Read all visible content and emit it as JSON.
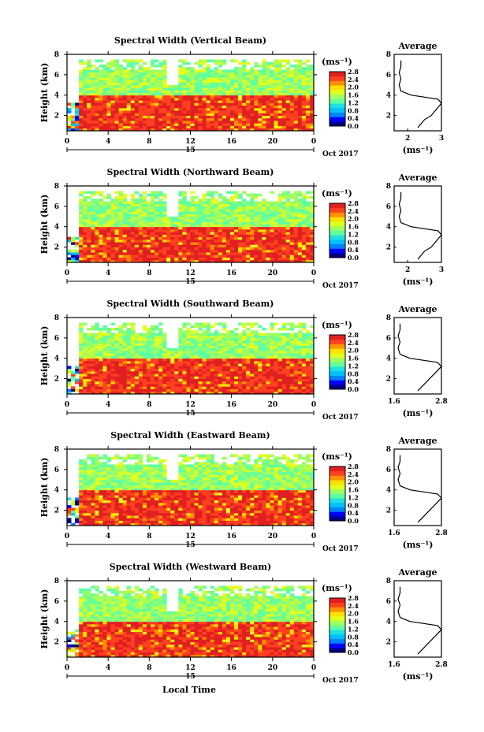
{
  "figure": {
    "xlabel_bottom": "Local Time"
  },
  "chart_data": [
    {
      "type": "heatmap",
      "beam": "vertical",
      "title": "Spectral Width (Vertical Beam)",
      "ylabel": "Height (km)",
      "x_ticks": [
        "0",
        "4",
        "8",
        "12",
        "16",
        "20",
        "0"
      ],
      "date_label": "15",
      "month_label": "Oct 2017",
      "xlim_hours": [
        0,
        24
      ],
      "ylim_km": [
        0.5,
        8
      ],
      "y_ticks": [
        "2",
        "4",
        "6",
        "8"
      ],
      "colorbar": {
        "unit": "(ms⁻¹)",
        "min": 0.0,
        "max": 2.8,
        "ticks": [
          "2.8",
          "2.4",
          "2.0",
          "1.6",
          "1.2",
          "0.8",
          "0.4",
          "0.0"
        ]
      },
      "layers": [
        {
          "from_km": 0.5,
          "to_km": 4.0,
          "value_range": [
            2.4,
            2.8
          ]
        },
        {
          "from_km": 4.0,
          "to_km": 7.5,
          "value_range": [
            1.2,
            1.8
          ]
        }
      ],
      "average": {
        "title": "Average",
        "xlabel": "(ms⁻¹)",
        "x_ticks": [
          "2",
          "3"
        ],
        "xlim": [
          1.6,
          3.0
        ],
        "y_ticks": [
          "2",
          "4",
          "6",
          "8"
        ],
        "profile": [
          [
            2.3,
            0.8
          ],
          [
            2.4,
            1.2
          ],
          [
            2.5,
            1.6
          ],
          [
            2.7,
            2.0
          ],
          [
            2.8,
            2.4
          ],
          [
            2.9,
            2.8
          ],
          [
            3.0,
            3.2
          ],
          [
            2.9,
            3.6
          ],
          [
            2.1,
            4.0
          ],
          [
            1.8,
            4.4
          ],
          [
            1.75,
            5.0
          ],
          [
            1.8,
            5.6
          ],
          [
            1.75,
            6.2
          ],
          [
            1.8,
            6.8
          ],
          [
            1.8,
            7.4
          ]
        ]
      }
    },
    {
      "type": "heatmap",
      "beam": "northward",
      "title": "Spectral Width (Northward Beam)",
      "ylabel": "Height (km)",
      "x_ticks": [
        "0",
        "4",
        "8",
        "12",
        "16",
        "20",
        "0"
      ],
      "date_label": "15",
      "month_label": "Oct 2017",
      "xlim_hours": [
        0,
        24
      ],
      "ylim_km": [
        0.5,
        8
      ],
      "y_ticks": [
        "2",
        "4",
        "6",
        "8"
      ],
      "colorbar": {
        "unit": "(ms⁻¹)",
        "min": 0.0,
        "max": 2.8,
        "ticks": [
          "2.8",
          "2.4",
          "2.0",
          "1.6",
          "1.2",
          "0.8",
          "0.4",
          "0.0"
        ]
      },
      "layers": [
        {
          "from_km": 0.5,
          "to_km": 4.0,
          "value_range": [
            2.4,
            2.8
          ]
        },
        {
          "from_km": 4.0,
          "to_km": 7.5,
          "value_range": [
            1.2,
            1.8
          ]
        }
      ],
      "average": {
        "title": "Average",
        "xlabel": "(ms⁻¹)",
        "x_ticks": [
          "2",
          "3"
        ],
        "xlim": [
          1.6,
          3.0
        ],
        "y_ticks": [
          "2",
          "4",
          "6",
          "8"
        ],
        "profile": [
          [
            2.3,
            0.8
          ],
          [
            2.4,
            1.2
          ],
          [
            2.5,
            1.6
          ],
          [
            2.7,
            2.0
          ],
          [
            2.8,
            2.4
          ],
          [
            2.9,
            2.8
          ],
          [
            3.0,
            3.2
          ],
          [
            2.9,
            3.6
          ],
          [
            2.1,
            4.0
          ],
          [
            1.8,
            4.4
          ],
          [
            1.75,
            5.0
          ],
          [
            1.8,
            5.6
          ],
          [
            1.75,
            6.2
          ],
          [
            1.8,
            6.8
          ],
          [
            1.8,
            7.4
          ]
        ]
      }
    },
    {
      "type": "heatmap",
      "beam": "southward",
      "title": "Spectral Width (Southward Beam)",
      "ylabel": "Height (km)",
      "x_ticks": [
        "0",
        "4",
        "8",
        "12",
        "16",
        "20",
        "0"
      ],
      "date_label": "15",
      "month_label": "Oct 2017",
      "xlim_hours": [
        0,
        24
      ],
      "ylim_km": [
        0.5,
        8
      ],
      "y_ticks": [
        "2",
        "4",
        "6",
        "8"
      ],
      "colorbar": {
        "unit": "(ms⁻¹)",
        "min": 0.0,
        "max": 2.8,
        "ticks": [
          "2.8",
          "2.4",
          "2.0",
          "1.6",
          "1.2",
          "0.8",
          "0.4",
          "0.0"
        ]
      },
      "layers": [
        {
          "from_km": 0.5,
          "to_km": 4.0,
          "value_range": [
            2.4,
            2.8
          ]
        },
        {
          "from_km": 4.0,
          "to_km": 7.5,
          "value_range": [
            1.2,
            1.8
          ]
        }
      ],
      "average": {
        "title": "Average",
        "xlabel": "(ms⁻¹)",
        "x_ticks": [
          "1.6",
          "2.8"
        ],
        "xlim": [
          1.6,
          2.8
        ],
        "y_ticks": [
          "2",
          "4",
          "6",
          "8"
        ],
        "profile": [
          [
            2.2,
            0.8
          ],
          [
            2.3,
            1.2
          ],
          [
            2.4,
            1.6
          ],
          [
            2.5,
            2.0
          ],
          [
            2.6,
            2.4
          ],
          [
            2.7,
            2.8
          ],
          [
            2.8,
            3.2
          ],
          [
            2.7,
            3.6
          ],
          [
            2.0,
            4.0
          ],
          [
            1.75,
            4.4
          ],
          [
            1.7,
            5.0
          ],
          [
            1.75,
            5.6
          ],
          [
            1.7,
            6.2
          ],
          [
            1.75,
            6.8
          ],
          [
            1.75,
            7.4
          ]
        ]
      }
    },
    {
      "type": "heatmap",
      "beam": "eastward",
      "title": "Spectral Width (Eastward Beam)",
      "ylabel": "Height (km)",
      "x_ticks": [
        "0",
        "4",
        "8",
        "12",
        "16",
        "20",
        "0"
      ],
      "date_label": "15",
      "month_label": "Oct 2017",
      "xlim_hours": [
        0,
        24
      ],
      "ylim_km": [
        0.5,
        8
      ],
      "y_ticks": [
        "2",
        "4",
        "6",
        "8"
      ],
      "colorbar": {
        "unit": "(ms⁻¹)",
        "min": 0.0,
        "max": 2.8,
        "ticks": [
          "2.8",
          "2.4",
          "2.0",
          "1.6",
          "1.2",
          "0.8",
          "0.4",
          "0.0"
        ]
      },
      "layers": [
        {
          "from_km": 0.5,
          "to_km": 4.0,
          "value_range": [
            2.4,
            2.8
          ]
        },
        {
          "from_km": 4.0,
          "to_km": 7.5,
          "value_range": [
            1.2,
            1.8
          ]
        }
      ],
      "average": {
        "title": "Average",
        "xlabel": "(ms⁻¹)",
        "x_ticks": [
          "1.6",
          "2.8"
        ],
        "xlim": [
          1.6,
          2.8
        ],
        "y_ticks": [
          "2",
          "4",
          "6",
          "8"
        ],
        "profile": [
          [
            2.2,
            0.8
          ],
          [
            2.3,
            1.2
          ],
          [
            2.4,
            1.6
          ],
          [
            2.5,
            2.0
          ],
          [
            2.6,
            2.4
          ],
          [
            2.7,
            2.8
          ],
          [
            2.8,
            3.2
          ],
          [
            2.7,
            3.6
          ],
          [
            2.0,
            4.0
          ],
          [
            1.75,
            4.4
          ],
          [
            1.7,
            5.0
          ],
          [
            1.75,
            5.6
          ],
          [
            1.7,
            6.2
          ],
          [
            1.75,
            6.8
          ],
          [
            1.75,
            7.4
          ]
        ]
      }
    },
    {
      "type": "heatmap",
      "beam": "westward",
      "title": "Spectral Width (Westward Beam)",
      "ylabel": "Height (km)",
      "x_ticks": [
        "0",
        "4",
        "8",
        "12",
        "16",
        "20",
        "0"
      ],
      "date_label": "15",
      "month_label": "Oct 2017",
      "xlim_hours": [
        0,
        24
      ],
      "ylim_km": [
        0.5,
        8
      ],
      "y_ticks": [
        "2",
        "4",
        "6",
        "8"
      ],
      "colorbar": {
        "unit": "(ms⁻¹)",
        "min": 0.0,
        "max": 2.8,
        "ticks": [
          "2.8",
          "2.4",
          "2.0",
          "1.6",
          "1.2",
          "0.8",
          "0.4",
          "0.0"
        ]
      },
      "layers": [
        {
          "from_km": 0.5,
          "to_km": 4.0,
          "value_range": [
            2.4,
            2.8
          ]
        },
        {
          "from_km": 4.0,
          "to_km": 7.5,
          "value_range": [
            1.2,
            1.8
          ]
        }
      ],
      "average": {
        "title": "Average",
        "xlabel": "(ms⁻¹)",
        "x_ticks": [
          "1.6",
          "2.8"
        ],
        "xlim": [
          1.6,
          2.8
        ],
        "y_ticks": [
          "2",
          "4",
          "6",
          "8"
        ],
        "profile": [
          [
            2.2,
            0.8
          ],
          [
            2.3,
            1.2
          ],
          [
            2.4,
            1.6
          ],
          [
            2.5,
            2.0
          ],
          [
            2.6,
            2.4
          ],
          [
            2.7,
            2.8
          ],
          [
            2.8,
            3.2
          ],
          [
            2.7,
            3.6
          ],
          [
            2.0,
            4.0
          ],
          [
            1.75,
            4.4
          ],
          [
            1.7,
            5.0
          ],
          [
            1.75,
            5.6
          ],
          [
            1.7,
            6.2
          ],
          [
            1.75,
            6.8
          ],
          [
            1.75,
            7.4
          ]
        ]
      }
    }
  ],
  "colors": {
    "colormap": [
      "#000080",
      "#0000ff",
      "#0080ff",
      "#00c0ff",
      "#20e0e0",
      "#60ffa0",
      "#a0ff60",
      "#e0ff20",
      "#ffe000",
      "#ff9000",
      "#ff4020",
      "#e02020"
    ]
  }
}
